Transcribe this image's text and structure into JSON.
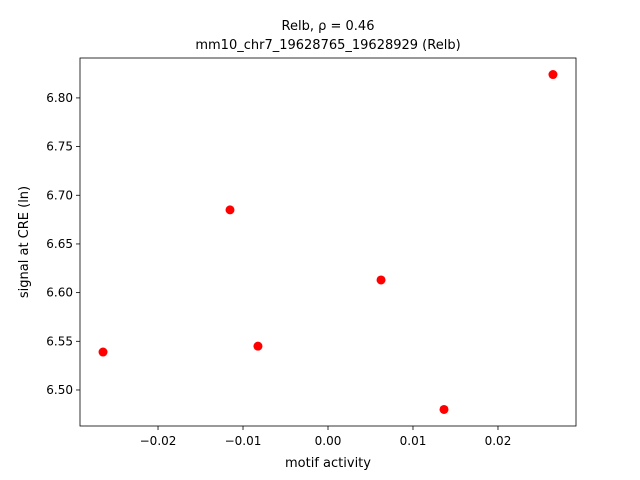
{
  "chart_data": {
    "type": "scatter",
    "title": "Relb, ρ = 0.46",
    "subtitle": "mm10_chr7_19628765_19628929 (Relb)",
    "x_label": "motif activity",
    "y_label": "signal at CRE (ln)",
    "color": "#ff0000",
    "x": [
      -0.02647,
      -0.01153,
      -0.00824,
      0.00624,
      0.01365,
      0.02647
    ],
    "y": [
      6.539,
      6.685,
      6.545,
      6.613,
      6.48,
      6.824
    ],
    "xlim": [
      -0.02918,
      0.02918
    ],
    "ylim": [
      6.463,
      6.841
    ],
    "xticks": [
      {
        "value": -0.02,
        "label": "−0.02"
      },
      {
        "value": -0.01,
        "label": "−0.01"
      },
      {
        "value": 0,
        "label": "0.00"
      },
      0.01,
      0.02
    ],
    "yticks": [
      {
        "value": 6.5,
        "label": "6.50"
      },
      6.55,
      {
        "value": 6.6,
        "label": "6.60"
      },
      6.65,
      {
        "value": 6.7,
        "label": "6.70"
      },
      6.75,
      {
        "value": 6.8,
        "label": "6.80"
      }
    ]
  }
}
